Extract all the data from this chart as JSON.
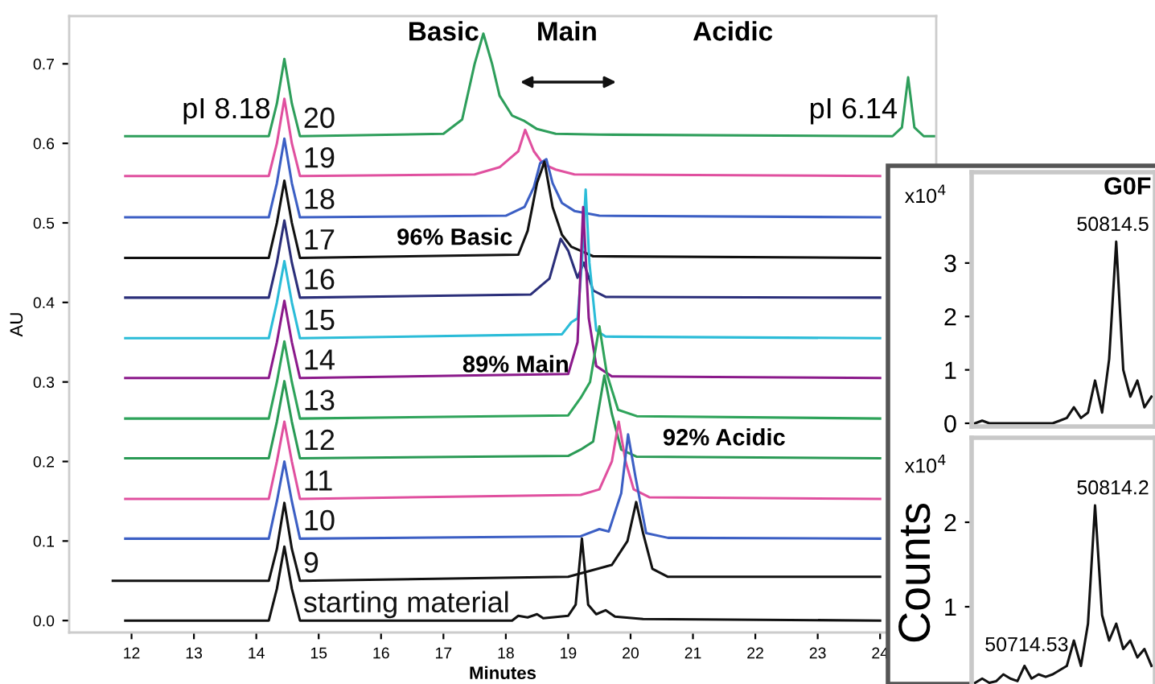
{
  "chart_data": [
    {
      "type": "line",
      "xlabel": "Minutes",
      "ylabel": "AU",
      "xlim": [
        11.0,
        24.9
      ],
      "ylim": [
        -0.015,
        0.76
      ],
      "xticks": [
        12,
        13,
        14,
        15,
        16,
        17,
        18,
        19,
        20,
        21,
        22,
        23,
        24
      ],
      "yticks": [
        {
          "value": 0,
          "label": "0.0"
        },
        0.1,
        0.2,
        0.3,
        0.4,
        0.5,
        0.6,
        0.7
      ],
      "grid": false,
      "legend": false,
      "annotations": [
        "Basic",
        "Main",
        "Acidic",
        "pI 8.18",
        "pI 6.14",
        "96% Basic",
        "89% Main",
        "92% Acidic"
      ],
      "series": [
        {
          "name": "20",
          "color": "#2e9e5b",
          "x": [
            11.9,
            14.2,
            14.33,
            14.45,
            14.57,
            14.7,
            17.0,
            17.3,
            17.5,
            17.64,
            17.78,
            17.9,
            18.1,
            18.3,
            18.5,
            18.8,
            19.5,
            24.2,
            24.35,
            24.45,
            24.55,
            24.7,
            24.9
          ],
          "values": [
            0.609,
            0.609,
            0.65,
            0.706,
            0.65,
            0.609,
            0.612,
            0.63,
            0.7,
            0.738,
            0.7,
            0.66,
            0.635,
            0.628,
            0.618,
            0.612,
            0.611,
            0.609,
            0.62,
            0.683,
            0.62,
            0.609,
            0.609
          ]
        },
        {
          "name": "19",
          "color": "#e0509f",
          "x": [
            11.9,
            14.2,
            14.33,
            14.45,
            14.57,
            14.7,
            17.5,
            17.9,
            18.05,
            18.2,
            18.31,
            18.45,
            18.6,
            18.8,
            19.1,
            24.0
          ],
          "values": [
            0.559,
            0.559,
            0.6,
            0.656,
            0.6,
            0.559,
            0.561,
            0.57,
            0.58,
            0.59,
            0.617,
            0.59,
            0.574,
            0.567,
            0.561,
            0.559
          ]
        },
        {
          "name": "18",
          "color": "#3c5fc4",
          "x": [
            11.9,
            14.2,
            14.33,
            14.45,
            14.57,
            14.7,
            18.0,
            18.3,
            18.45,
            18.55,
            18.65,
            18.75,
            18.9,
            19.1,
            19.5,
            24.0
          ],
          "values": [
            0.507,
            0.507,
            0.55,
            0.606,
            0.55,
            0.507,
            0.509,
            0.52,
            0.545,
            0.575,
            0.58,
            0.55,
            0.525,
            0.515,
            0.509,
            0.507
          ]
        },
        {
          "name": "17",
          "color": "#111111",
          "x": [
            11.9,
            14.2,
            14.33,
            14.45,
            14.57,
            14.7,
            18.2,
            18.35,
            18.5,
            18.62,
            18.75,
            18.9,
            19.05,
            19.2,
            19.4,
            24.0
          ],
          "values": [
            0.456,
            0.456,
            0.5,
            0.553,
            0.5,
            0.456,
            0.46,
            0.49,
            0.55,
            0.577,
            0.52,
            0.485,
            0.47,
            0.465,
            0.458,
            0.456
          ]
        },
        {
          "name": "16",
          "color": "#2b2f7a",
          "x": [
            11.9,
            14.2,
            14.33,
            14.45,
            14.57,
            14.7,
            18.4,
            18.7,
            18.88,
            19.0,
            19.15,
            19.25,
            19.4,
            19.6,
            24.0
          ],
          "values": [
            0.406,
            0.406,
            0.45,
            0.503,
            0.45,
            0.406,
            0.41,
            0.43,
            0.48,
            0.465,
            0.431,
            0.45,
            0.415,
            0.407,
            0.406
          ]
        },
        {
          "name": "15",
          "color": "#2bbcd8",
          "x": [
            11.9,
            14.2,
            14.33,
            14.45,
            14.57,
            14.7,
            18.9,
            19.05,
            19.15,
            19.22,
            19.28,
            19.34,
            19.45,
            19.6,
            24.0
          ],
          "values": [
            0.355,
            0.355,
            0.4,
            0.452,
            0.4,
            0.355,
            0.36,
            0.375,
            0.38,
            0.45,
            0.542,
            0.45,
            0.365,
            0.357,
            0.355
          ]
        },
        {
          "name": "14",
          "color": "#8b1a8b",
          "x": [
            11.9,
            14.2,
            14.33,
            14.45,
            14.57,
            14.7,
            19.0,
            19.15,
            19.24,
            19.33,
            19.45,
            19.7,
            24.0
          ],
          "values": [
            0.305,
            0.305,
            0.35,
            0.402,
            0.35,
            0.305,
            0.31,
            0.35,
            0.52,
            0.38,
            0.32,
            0.307,
            0.305
          ]
        },
        {
          "name": "13",
          "color": "#2ea35a",
          "x": [
            11.9,
            14.2,
            14.33,
            14.45,
            14.57,
            14.7,
            19.0,
            19.2,
            19.35,
            19.5,
            19.62,
            19.8,
            20.1,
            24.0
          ],
          "values": [
            0.254,
            0.254,
            0.3,
            0.351,
            0.3,
            0.254,
            0.258,
            0.28,
            0.3,
            0.37,
            0.31,
            0.265,
            0.257,
            0.254
          ]
        },
        {
          "name": "12",
          "color": "#2a9a55",
          "x": [
            11.9,
            14.2,
            14.33,
            14.45,
            14.57,
            14.7,
            19.0,
            19.2,
            19.4,
            19.58,
            19.7,
            19.85,
            20.1,
            24.0
          ],
          "values": [
            0.204,
            0.204,
            0.25,
            0.301,
            0.25,
            0.204,
            0.207,
            0.215,
            0.225,
            0.308,
            0.26,
            0.215,
            0.206,
            0.204
          ]
        },
        {
          "name": "11",
          "color": "#e0509f",
          "x": [
            11.9,
            14.2,
            14.33,
            14.45,
            14.57,
            14.7,
            19.2,
            19.5,
            19.7,
            19.81,
            19.92,
            20.05,
            20.3,
            24.0
          ],
          "values": [
            0.153,
            0.153,
            0.2,
            0.25,
            0.2,
            0.153,
            0.158,
            0.165,
            0.2,
            0.25,
            0.2,
            0.165,
            0.155,
            0.153
          ]
        },
        {
          "name": "10",
          "color": "#3c5fc4",
          "x": [
            11.9,
            14.2,
            14.33,
            14.45,
            14.57,
            14.7,
            19.2,
            19.5,
            19.65,
            19.85,
            19.96,
            20.08,
            20.25,
            20.6,
            24.0
          ],
          "values": [
            0.103,
            0.103,
            0.15,
            0.2,
            0.15,
            0.103,
            0.106,
            0.115,
            0.112,
            0.16,
            0.234,
            0.18,
            0.11,
            0.104,
            0.103
          ]
        },
        {
          "name": "9",
          "color": "#111111",
          "x": [
            11.7,
            14.2,
            14.33,
            14.45,
            14.57,
            14.7,
            19.0,
            19.7,
            19.95,
            20.09,
            20.2,
            20.35,
            20.6,
            24.0
          ],
          "values": [
            0.05,
            0.05,
            0.09,
            0.148,
            0.09,
            0.05,
            0.055,
            0.07,
            0.1,
            0.149,
            0.11,
            0.065,
            0.055,
            0.055
          ]
        },
        {
          "name": "starting material",
          "color": "#111111",
          "x": [
            11.9,
            14.2,
            14.33,
            14.45,
            14.57,
            14.7,
            18.1,
            18.2,
            18.35,
            18.5,
            18.6,
            19.0,
            19.12,
            19.22,
            19.32,
            19.45,
            19.6,
            19.75,
            20.2,
            24.0
          ],
          "values": [
            0,
            0,
            0.04,
            0.093,
            0.04,
            0,
            0,
            0.006,
            0.004,
            0.008,
            0.003,
            0.006,
            0.02,
            0.103,
            0.02,
            0.008,
            0.013,
            0.005,
            0.002,
            0
          ]
        }
      ]
    },
    {
      "type": "line",
      "title": "G0F",
      "categories": [
        null,
        null,
        null,
        null,
        null,
        null,
        null,
        null,
        null,
        null,
        null,
        null,
        null,
        null,
        null,
        null,
        null,
        null,
        null,
        null,
        null,
        null,
        null,
        null,
        null,
        null
      ],
      "ylim": [
        -0.06,
        4.7
      ],
      "yticks": [
        0,
        1,
        2,
        3
      ],
      "tick_labels": "y",
      "annotations": [
        "x10$^{4}$",
        "50814.5"
      ],
      "series": [
        {
          "color": "#111111",
          "values": [
            0,
            0.05,
            0,
            0,
            0,
            0,
            0,
            0,
            0,
            0,
            0,
            0,
            0.05,
            0.1,
            0.3,
            0.1,
            0.2,
            0.8,
            0.2,
            1.2,
            3.4,
            1.0,
            0.5,
            0.8,
            0.3,
            0.5
          ]
        }
      ]
    },
    {
      "type": "line",
      "ylabel": "Counts",
      "categories": [
        null,
        null,
        null,
        null,
        null,
        null,
        null,
        null,
        null,
        null,
        null,
        null,
        null,
        null,
        null,
        null,
        null,
        null,
        null,
        null,
        null,
        null,
        null,
        null,
        null,
        null
      ],
      "ylim": [
        -0.2,
        3.0
      ],
      "yticks": [
        1,
        2
      ],
      "tick_labels": "y",
      "annotations": [
        "x10$^{4}$",
        "50814.2",
        "50714.53"
      ],
      "series": [
        {
          "color": "#111111",
          "values": [
            0.1,
            0.15,
            0.1,
            0.12,
            0.2,
            0.15,
            0.12,
            0.3,
            0.15,
            0.2,
            0.17,
            0.2,
            0.25,
            0.3,
            0.6,
            0.3,
            0.8,
            2.2,
            0.9,
            0.6,
            0.8,
            0.5,
            0.6,
            0.4,
            0.5,
            0.3
          ]
        }
      ]
    }
  ]
}
